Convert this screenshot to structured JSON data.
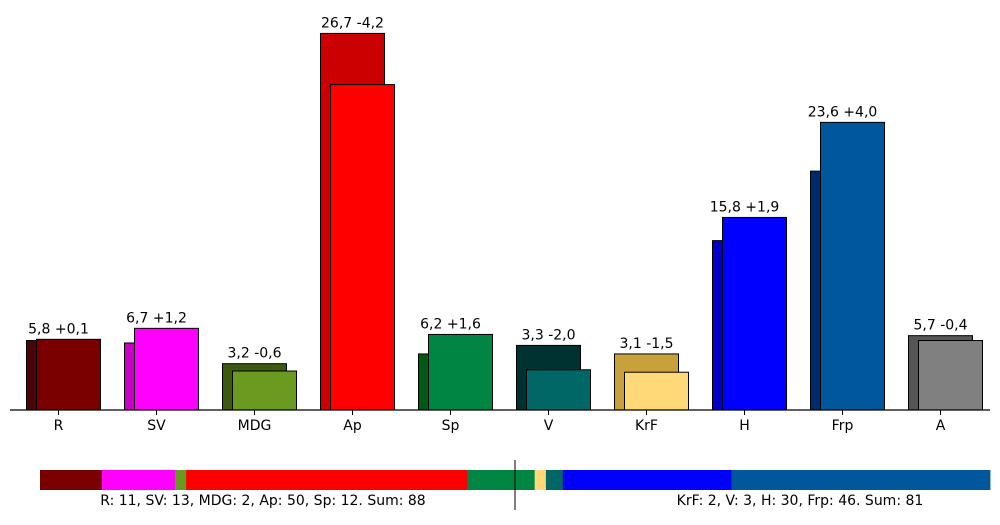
{
  "chart_data": {
    "type": "bar",
    "categories": [
      "R",
      "SV",
      "MDG",
      "Ap",
      "Sp",
      "V",
      "KrF",
      "H",
      "Frp",
      "A"
    ],
    "series": [
      {
        "values": [
          5.7,
          5.5,
          3.8,
          30.9,
          4.6,
          5.3,
          4.6,
          13.9,
          19.6,
          6.1
        ]
      },
      {
        "values": [
          5.8,
          6.7,
          3.2,
          26.7,
          6.2,
          3.3,
          3.1,
          15.8,
          23.6,
          5.7
        ]
      }
    ],
    "changes": [
      0.1,
      1.2,
      -0.6,
      -4.2,
      1.6,
      -2.0,
      -1.5,
      1.9,
      4.0,
      -0.4
    ],
    "data_labels": [
      "5,8 +0,1",
      "6,7 +1,2",
      "3,2 -0,6",
      "26,7 -4,2",
      "6,2 +1,6",
      "3,3 -2,0",
      "3,1 -1,5",
      "15,8 +1,9",
      "23,6 +4,0",
      "5,7 -0,4"
    ],
    "colors_previous": [
      "#4a0606",
      "#c800c8",
      "#3c5a10",
      "#cc0000",
      "#005a14",
      "#003232",
      "#c8a03c",
      "#0000c8",
      "#002a6e",
      "#555555"
    ],
    "colors_current": [
      "#7a0000",
      "#ff00ff",
      "#6b9a20",
      "#ff0000",
      "#008542",
      "#006666",
      "#ffd877",
      "#0000ff",
      "#00579c",
      "#808080"
    ],
    "ylim": [
      0,
      32
    ],
    "seat_bar": {
      "left_bloc": [
        {
          "party": "R",
          "seats": 11,
          "color": "#7a0000"
        },
        {
          "party": "SV",
          "seats": 13,
          "color": "#ff00ff"
        },
        {
          "party": "MDG",
          "seats": 2,
          "color": "#6b9a20"
        },
        {
          "party": "Ap",
          "seats": 50,
          "color": "#ff0000"
        },
        {
          "party": "Sp",
          "seats": 12,
          "color": "#008542"
        }
      ],
      "right_bloc": [
        {
          "party": "KrF",
          "seats": 2,
          "color": "#ffd877"
        },
        {
          "party": "V",
          "seats": 3,
          "color": "#006666"
        },
        {
          "party": "H",
          "seats": 30,
          "color": "#0000ff"
        },
        {
          "party": "Frp",
          "seats": 46,
          "color": "#00579c"
        }
      ],
      "left_summary": "R: 11, SV: 13, MDG: 2, Ap: 50, Sp: 12. Sum: 88",
      "right_summary": "KrF: 2, V: 3, H: 30, Frp: 46. Sum: 81"
    }
  }
}
